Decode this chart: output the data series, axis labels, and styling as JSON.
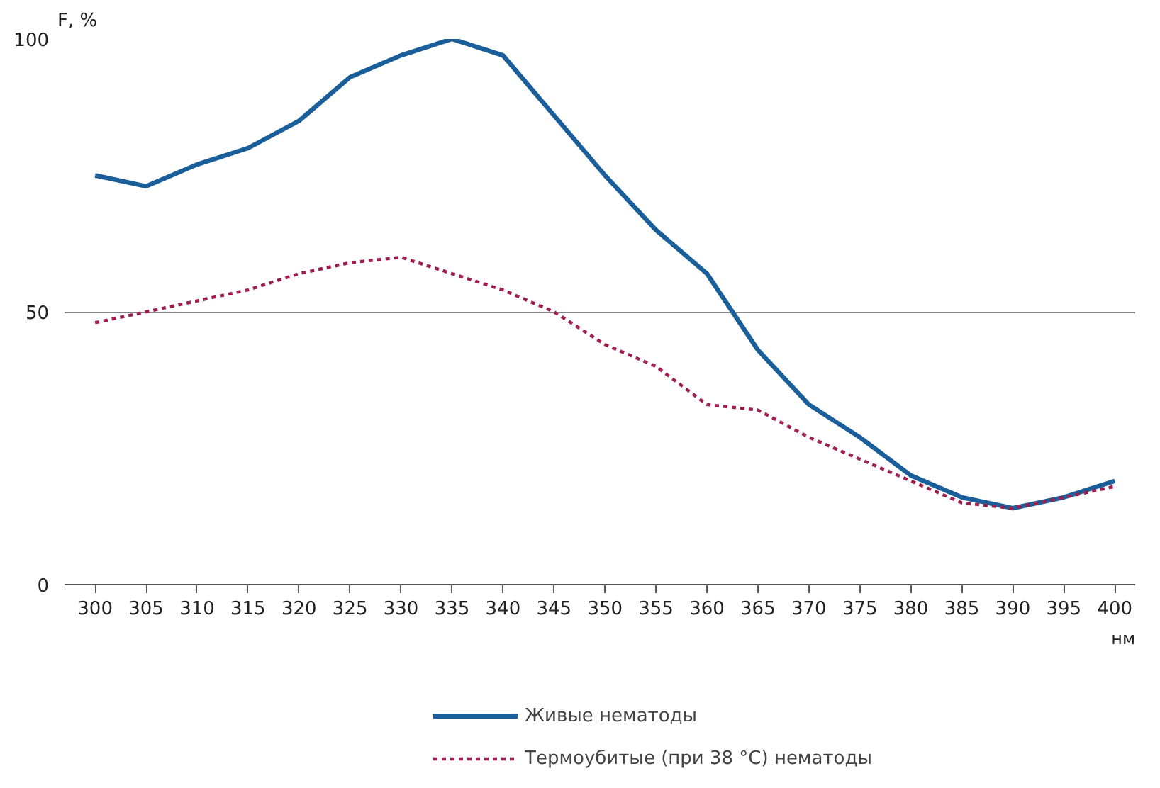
{
  "chart_data": {
    "type": "line",
    "ylabel": "F, %",
    "xlabel": "нм",
    "x": [
      300,
      305,
      310,
      315,
      320,
      325,
      330,
      335,
      340,
      345,
      350,
      355,
      360,
      365,
      370,
      375,
      380,
      385,
      390,
      395,
      400
    ],
    "series": [
      {
        "name": "Живые нематоды",
        "color": "#1a5e9a",
        "line_style": "solid",
        "values": [
          75,
          73,
          77,
          80,
          85,
          93,
          97,
          100,
          97,
          86,
          75,
          65,
          57,
          43,
          33,
          27,
          20,
          16,
          14,
          16,
          19
        ]
      },
      {
        "name": "Термоубитые (при 38 °C) нематоды",
        "color": "#9e1f4f",
        "line_style": "dotted",
        "values": [
          48,
          50,
          52,
          54,
          57,
          59,
          60,
          57,
          54,
          50,
          44,
          40,
          33,
          32,
          27,
          23,
          19,
          15,
          14,
          16,
          18
        ]
      }
    ],
    "xlim": [
      297,
      402
    ],
    "ylim": [
      0,
      100
    ],
    "xticks": [
      300,
      305,
      310,
      315,
      320,
      325,
      330,
      335,
      340,
      345,
      350,
      355,
      360,
      365,
      370,
      375,
      380,
      385,
      390,
      395,
      400
    ],
    "yticks": [
      0,
      50,
      100
    ],
    "grid": "y",
    "legend": "bottom",
    "marker": "none"
  }
}
